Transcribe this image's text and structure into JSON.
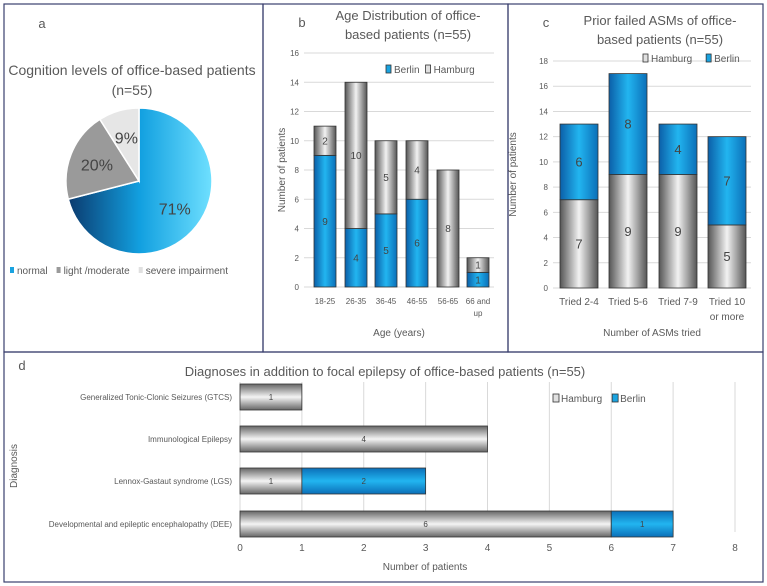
{
  "colors": {
    "berlin": "#1aa3e0",
    "hamburg": "#bdbdbd",
    "light": "#e6e6e6",
    "border": "#3a3f6e",
    "grid": "#d9d9d9",
    "text": "#595959"
  },
  "chart_data": [
    {
      "panel": "a",
      "type": "pie",
      "title": "Cognition levels of office-based patients (n=55)",
      "title_lines": [
        "Cognition levels of office-based patients",
        "(n=55)"
      ],
      "slices": [
        {
          "label": "normal",
          "value": 71,
          "display": "71%"
        },
        {
          "label": "light /moderate",
          "value": 20,
          "display": "20%"
        },
        {
          "label": "severe impairment",
          "value": 9,
          "display": "9%"
        }
      ],
      "legend": "bottom"
    },
    {
      "panel": "b",
      "type": "bar",
      "stacked": true,
      "title": "Age Distribution of office-based patients (n=55)",
      "title_lines": [
        "Age Distribution of office-",
        "based patients (n=55)"
      ],
      "categories": [
        "18-25",
        "26-35",
        "36-45",
        "46-55",
        "56-65",
        "66 and up"
      ],
      "category_lines": [
        [
          "18-25"
        ],
        [
          "26-35"
        ],
        [
          "36-45"
        ],
        [
          "46-55"
        ],
        [
          "56-65"
        ],
        [
          "66 and",
          "up"
        ]
      ],
      "series": [
        {
          "name": "Berlin",
          "values": [
            9,
            4,
            5,
            6,
            0,
            1
          ]
        },
        {
          "name": "Hamburg",
          "values": [
            2,
            10,
            5,
            4,
            8,
            1
          ]
        }
      ],
      "xlabel": "Age (years)",
      "ylabel": "Number of patients",
      "ylim": [
        0,
        16
      ],
      "yticks": [
        0,
        2,
        4,
        6,
        8,
        10,
        12,
        14,
        16
      ],
      "grid": true,
      "legend": "top-right"
    },
    {
      "panel": "c",
      "type": "bar",
      "stacked": true,
      "title": "Prior failed ASMs of office-based patients (n=55)",
      "title_lines": [
        "Prior failed ASMs of office-",
        "based patients (n=55)"
      ],
      "categories": [
        "Tried 2-4",
        "Tried 5-6",
        "Tried 7-9",
        "Tried 10 or more"
      ],
      "category_lines": [
        [
          "Tried 2-4"
        ],
        [
          "Tried 5-6"
        ],
        [
          "Tried 7-9"
        ],
        [
          "Tried 10",
          "or more"
        ]
      ],
      "series": [
        {
          "name": "Hamburg",
          "values": [
            7,
            9,
            9,
            5
          ]
        },
        {
          "name": "Berlin",
          "values": [
            6,
            8,
            4,
            7
          ]
        }
      ],
      "xlabel": "Number of ASMs tried",
      "ylabel": "Number of patients",
      "ylim": [
        0,
        18
      ],
      "yticks": [
        0,
        2,
        4,
        6,
        8,
        10,
        12,
        14,
        16,
        18
      ],
      "grid": true,
      "legend": "top-right"
    },
    {
      "panel": "d",
      "type": "bar",
      "orientation": "horizontal",
      "stacked": true,
      "title": "Diagnoses in addition to focal epilepsy of office-based patients (n=55)",
      "categories": [
        "Generalized Tonic-Clonic Seizures (GTCS)",
        "Immunological Epilepsy",
        "Lennox-Gastaut syndrome (LGS)",
        "Developmental and epileptic encephalopathy (DEE)"
      ],
      "series": [
        {
          "name": "Hamburg",
          "values": [
            1,
            4,
            1,
            6
          ]
        },
        {
          "name": "Berlin",
          "values": [
            0,
            0,
            2,
            1
          ]
        }
      ],
      "xlabel": "Number of patients",
      "ylabel": "Diagnosis",
      "xlim": [
        0,
        8
      ],
      "xticks": [
        0,
        1,
        2,
        3,
        4,
        5,
        6,
        7,
        8
      ],
      "grid": true,
      "legend": "top-right"
    }
  ],
  "panel_labels": [
    "a",
    "b",
    "c",
    "d"
  ]
}
